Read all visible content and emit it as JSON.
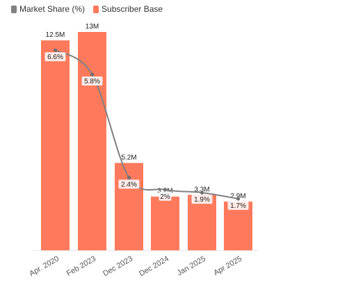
{
  "chart_data": {
    "type": "bar",
    "categories": [
      "Apr. 2020",
      "Feb 2023",
      "Dec 2023",
      "Dec 2024",
      "Jan 2025",
      "Apr 2025"
    ],
    "legend_position": "top-left",
    "series": [
      {
        "name": "Subscriber Base",
        "type": "bar",
        "values": [
          12.5,
          13,
          5.2,
          3.2,
          3.3,
          2.9
        ],
        "unit": "M",
        "labels": [
          "12.5M",
          "13M",
          "5.2M",
          "3.2M",
          "3.3M",
          "2.9M"
        ],
        "color": "#FF7A5C"
      },
      {
        "name": "Market Share (%)",
        "type": "line",
        "values": [
          6.6,
          5.8,
          2.4,
          2,
          1.9,
          1.7
        ],
        "labels": [
          "6.6%",
          "5.8%",
          "2.4%",
          "2%",
          "1.9%",
          "1.7%"
        ],
        "color": "#808080"
      }
    ],
    "bar_axis_range": [
      0,
      13
    ],
    "line_axis_range": [
      0,
      7.2
    ],
    "grid": false
  }
}
